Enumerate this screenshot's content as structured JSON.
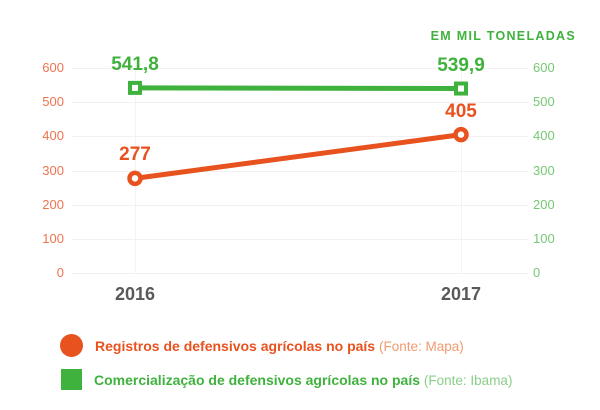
{
  "chart_data": {
    "type": "line",
    "title": "EM MIL TONELADAS",
    "x": [
      "2016",
      "2017"
    ],
    "y_ticks": [
      0,
      100,
      200,
      300,
      400,
      500,
      600
    ],
    "ylim": [
      0,
      600
    ],
    "grid": true,
    "legend_position": "bottom-left",
    "axes": {
      "left_tick_color": "#ef7450",
      "right_tick_color": "#77c775",
      "x_label_color": "#58595b",
      "title_color": "#3fb23d"
    },
    "series": [
      {
        "name": "Registros de defensivos agrícolas no país",
        "source": "(Fonte: Mapa)",
        "values": [
          277,
          405
        ],
        "value_labels": [
          "277",
          "405"
        ],
        "color": "#e8521f",
        "source_color": "#f09a70",
        "marker": "circle"
      },
      {
        "name": "Comercialização de defensivos agrícolas no país",
        "source": "(Fonte: Ibama)",
        "values": [
          541.8,
          539.9
        ],
        "value_labels": [
          "541,8",
          "539,9"
        ],
        "color": "#3fb23d",
        "source_color": "#8bce89",
        "marker": "square"
      }
    ]
  }
}
